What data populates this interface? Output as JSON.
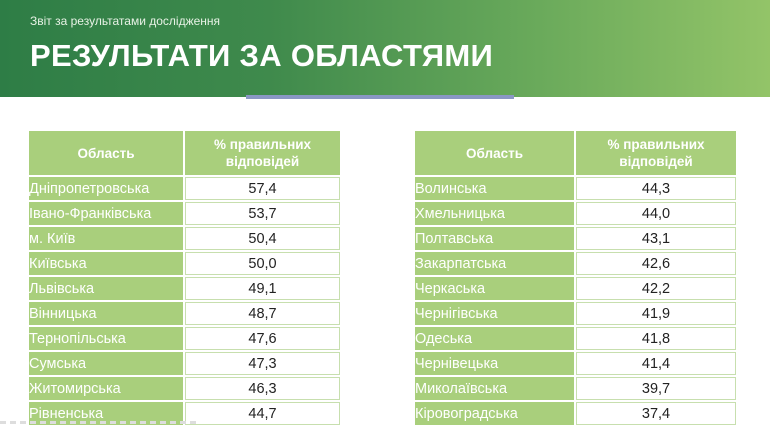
{
  "header": {
    "subtitle": "Звіт за результатами дослідження",
    "title": "РЕЗУЛЬТАТИ ЗА ОБЛАСТЯМИ"
  },
  "colors": {
    "header_start": "#2e7d46",
    "header_end": "#93c468",
    "table_green": "#a9cf7c",
    "accent_line": "#8a97c4"
  },
  "tables": [
    {
      "col_region": "Область",
      "col_percent_line1": "% правильних",
      "col_percent_line2": "відповідей",
      "rows": [
        {
          "region": "Дніпропетровська",
          "value": "57,4"
        },
        {
          "region": "Івано-Франківська",
          "value": "53,7"
        },
        {
          "region": "м. Київ",
          "value": "50,4"
        },
        {
          "region": "Київська",
          "value": "50,0"
        },
        {
          "region": "Львівська",
          "value": "49,1"
        },
        {
          "region": "Вінницька",
          "value": "48,7"
        },
        {
          "region": "Тернопільська",
          "value": "47,6"
        },
        {
          "region": "Сумська",
          "value": "47,3"
        },
        {
          "region": "Житомирська",
          "value": "46,3"
        },
        {
          "region": "Рівненська",
          "value": "44,7"
        }
      ]
    },
    {
      "col_region": "Область",
      "col_percent_line1": "% правильних",
      "col_percent_line2": "відповідей",
      "rows": [
        {
          "region": "Волинська",
          "value": "44,3"
        },
        {
          "region": "Хмельницька",
          "value": "44,0"
        },
        {
          "region": "Полтавська",
          "value": "43,1"
        },
        {
          "region": "Закарпатська",
          "value": "42,6"
        },
        {
          "region": "Черкаська",
          "value": "42,2"
        },
        {
          "region": "Чернігівська",
          "value": "41,9"
        },
        {
          "region": "Одеська",
          "value": "41,8"
        },
        {
          "region": "Чернівецька",
          "value": "41,4"
        },
        {
          "region": "Миколаївська",
          "value": "39,7"
        },
        {
          "region": "Кіровоградська",
          "value": "37,4"
        }
      ]
    }
  ]
}
